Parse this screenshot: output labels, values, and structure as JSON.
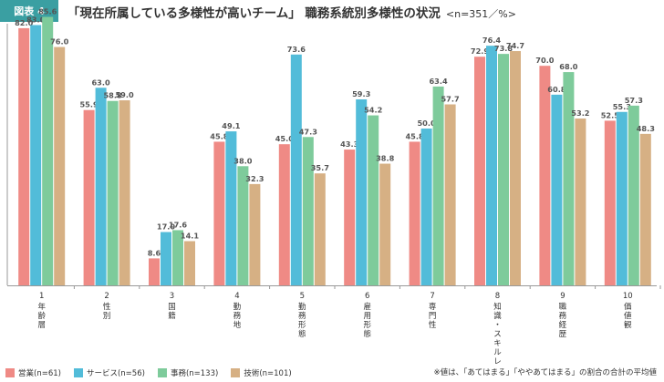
{
  "header": {
    "figure_label": "図表 4",
    "title": "「現在所属している多様性が高いチーム」 職務系統別多様性の状況",
    "unit": "<n=351／%>"
  },
  "colors": {
    "sales": "#ef8a85",
    "service": "#52bcd9",
    "office": "#7ecb9b",
    "tech": "#d6b084"
  },
  "chart_data": {
    "type": "bar",
    "title": "「現在所属している多様性が高いチーム」 職務系統別多様性の状況",
    "unit": "<n=351／%>",
    "ylim": [
      0,
      90
    ],
    "categories": [
      {
        "num": "1",
        "label": "年齢層"
      },
      {
        "num": "2",
        "label": "性別"
      },
      {
        "num": "3",
        "label": "国籍"
      },
      {
        "num": "4",
        "label": "勤務地"
      },
      {
        "num": "5",
        "label": "勤務形態"
      },
      {
        "num": "6",
        "label": "雇用形態"
      },
      {
        "num": "7",
        "label": "専門性"
      },
      {
        "num": "8",
        "label": "知識・スキルレベル"
      },
      {
        "num": "9",
        "label": "職務経歴"
      },
      {
        "num": "10",
        "label": "価値観"
      }
    ],
    "series": [
      {
        "name": "営業(n=61)",
        "key": "sales",
        "values": [
          82.0,
          55.9,
          8.6,
          45.8,
          45.0,
          43.3,
          45.8,
          72.9,
          70.0,
          52.5
        ]
      },
      {
        "name": "サービス(n=56)",
        "key": "service",
        "values": [
          83.0,
          63.0,
          17.0,
          49.1,
          73.6,
          59.3,
          50.0,
          76.4,
          60.8,
          55.3
        ]
      },
      {
        "name": "事務(n=133)",
        "key": "office",
        "values": [
          85.6,
          58.8,
          17.6,
          38.0,
          47.3,
          54.2,
          63.4,
          73.8,
          68.0,
          57.3
        ]
      },
      {
        "name": "技術(n=101)",
        "key": "tech",
        "values": [
          76.0,
          59.0,
          14.1,
          32.3,
          35.7,
          38.8,
          57.7,
          74.7,
          53.2,
          48.3
        ]
      }
    ],
    "legend_position": "bottom-left"
  },
  "footnote": "※値は、「あてはまる」「ややあてはまる」の割合の合計の平均値"
}
